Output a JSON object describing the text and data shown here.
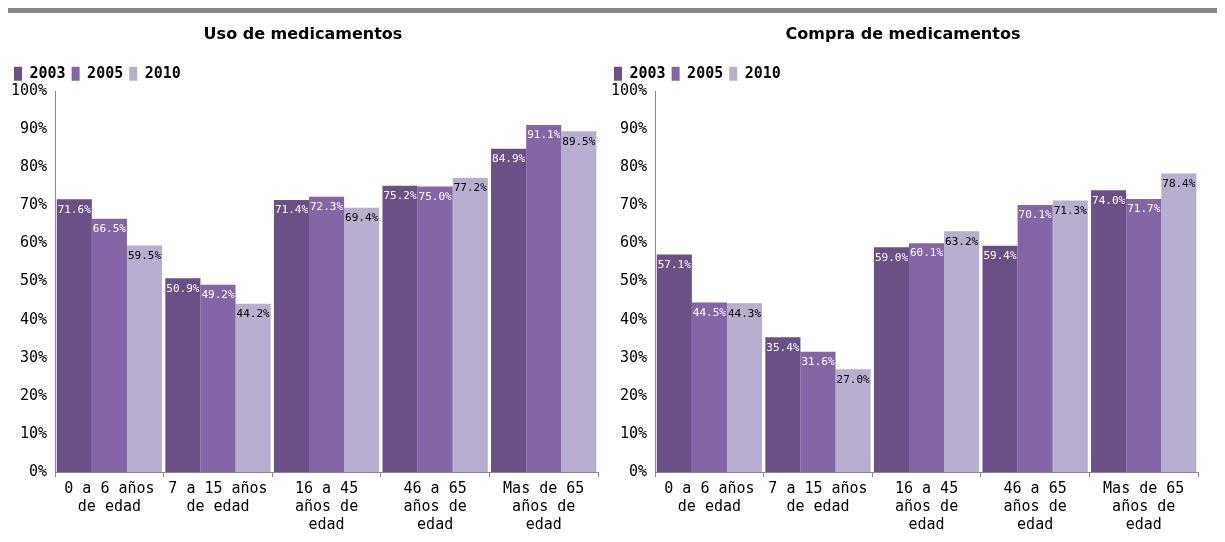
{
  "chart_data": [
    {
      "type": "bar",
      "title": "Uso de medicamentos",
      "categories": [
        "0 a 6 años de edad",
        "7 a 15 años de edad",
        "16 a 45 años de edad",
        "46 a 65 años de edad",
        "Mas de 65 años de edad"
      ],
      "series": [
        {
          "name": "2003",
          "color": "#6a5087",
          "values": [
            71.6,
            50.9,
            71.4,
            75.2,
            84.9
          ]
        },
        {
          "name": "2005",
          "color": "#8466a6",
          "values": [
            66.5,
            49.2,
            72.3,
            75.0,
            91.1
          ]
        },
        {
          "name": "2010",
          "color": "#b8aed0",
          "values": [
            59.5,
            44.2,
            69.4,
            77.2,
            89.5
          ]
        }
      ],
      "ylim": [
        0,
        100
      ],
      "yticks": [
        {
          "value": 0,
          "label": "0%"
        },
        {
          "value": 10,
          "label": "10%"
        },
        {
          "value": 20,
          "label": "20%"
        },
        {
          "value": 30,
          "label": "30%"
        },
        {
          "value": 40,
          "label": "40%"
        },
        {
          "value": 50,
          "label": "50%"
        },
        {
          "value": 60,
          "label": "60%"
        },
        {
          "value": 70,
          "label": "70%"
        },
        {
          "value": 80,
          "label": "80%"
        },
        {
          "value": 90,
          "label": "90%"
        },
        {
          "value": 100,
          "label": "100%"
        }
      ],
      "value_labels": [
        [
          "71.6%",
          "50.9%",
          "71.4%",
          "75.2%",
          "84.9%"
        ],
        [
          "66.5%",
          "49.2%",
          "72.3%",
          "75.0%",
          "91.1%"
        ],
        [
          "59.5%",
          "44.2%",
          "69.4%",
          "77.2%",
          "89.5%"
        ]
      ],
      "grid": false,
      "legend": "top left"
    },
    {
      "type": "bar",
      "title": "Compra de medicamentos",
      "categories": [
        "0 a 6 años de edad",
        "7 a 15 años de edad",
        "16 a 45 años de edad",
        "46 a 65 años de edad",
        "Mas de 65 años de edad"
      ],
      "series": [
        {
          "name": "2003",
          "color": "#6a5087",
          "values": [
            57.1,
            35.4,
            59.0,
            59.4,
            74.0
          ]
        },
        {
          "name": "2005",
          "color": "#8466a6",
          "values": [
            44.5,
            31.6,
            60.1,
            70.1,
            71.7
          ]
        },
        {
          "name": "2010",
          "color": "#b8aed0",
          "values": [
            44.3,
            27.0,
            63.2,
            71.3,
            78.4
          ]
        }
      ],
      "ylim": [
        0,
        100
      ],
      "yticks": [
        {
          "value": 0,
          "label": "0%"
        },
        {
          "value": 10,
          "label": "10%"
        },
        {
          "value": 20,
          "label": "20%"
        },
        {
          "value": 30,
          "label": "30%"
        },
        {
          "value": 40,
          "label": "40%"
        },
        {
          "value": 50,
          "label": "50%"
        },
        {
          "value": 60,
          "label": "60%"
        },
        {
          "value": 70,
          "label": "70%"
        },
        {
          "value": 80,
          "label": "80%"
        },
        {
          "value": 90,
          "label": "90%"
        },
        {
          "value": 100,
          "label": "100%"
        }
      ],
      "value_labels": [
        [
          "57.1%",
          "35.4%",
          "59.0%",
          "59.4%",
          "74.0%"
        ],
        [
          "44.5%",
          "31.6%",
          "60.1%",
          "70.1%",
          "71.7%"
        ],
        [
          "44.3%",
          "27.0%",
          "63.2%",
          "71.3%",
          "78.4%"
        ]
      ],
      "grid": false,
      "legend": "top left"
    }
  ]
}
